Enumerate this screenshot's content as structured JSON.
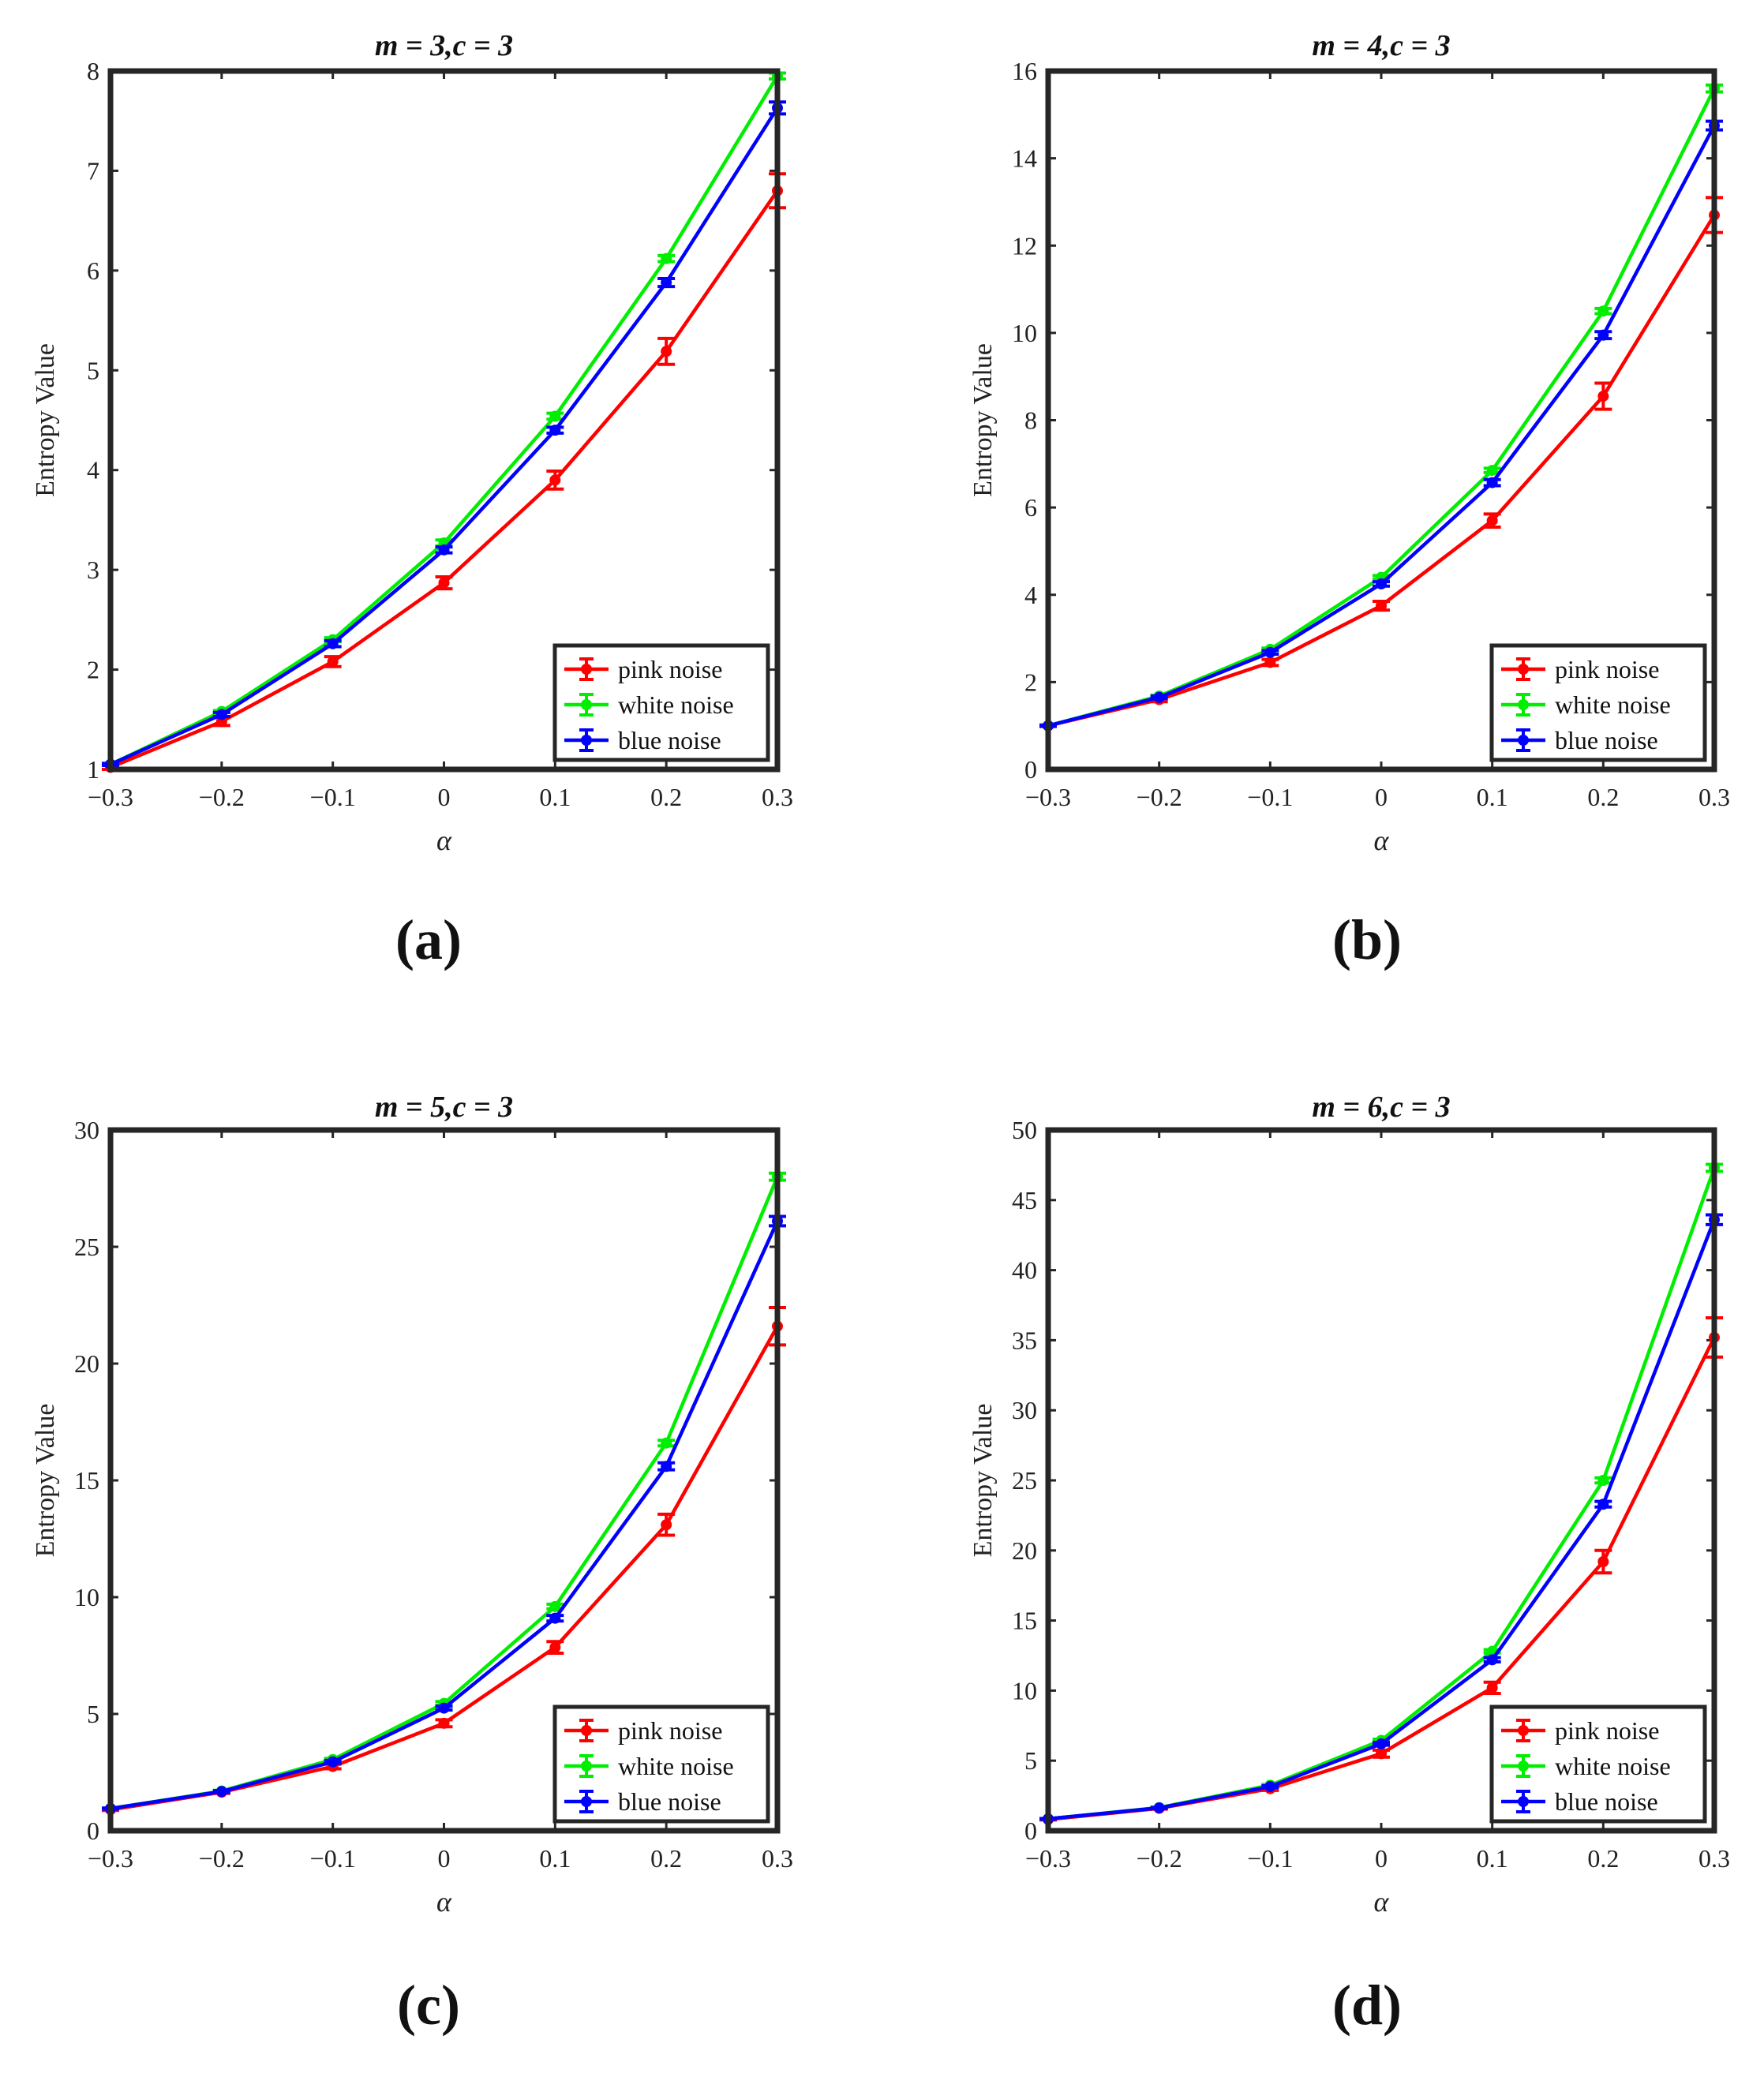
{
  "colors": {
    "pink_noise": "#ff0000",
    "white_noise": "#00ee00",
    "blue_noise": "#0000ff",
    "axes": "#262626"
  },
  "chart_data": [
    {
      "type": "line",
      "panel": "(a)",
      "title": "m = 3,c = 3",
      "xlabel": "α",
      "ylabel": "Entropy Value",
      "x": [
        -0.3,
        -0.2,
        -0.1,
        0,
        0.1,
        0.2,
        0.3
      ],
      "x_tick_labels": [
        "−0.3",
        "−0.2",
        "−0.1",
        "0",
        "0.1",
        "0.2",
        "0.3"
      ],
      "xlim": [
        -0.3,
        0.3
      ],
      "ylim": [
        1,
        8
      ],
      "y_ticks": [
        1,
        2,
        3,
        4,
        5,
        6,
        7,
        8
      ],
      "y_tick_labels": [
        "1",
        "2",
        "3",
        "4",
        "5",
        "6",
        "7",
        "8"
      ],
      "legend_position": "bottom-right",
      "series": [
        {
          "name": "pink noise",
          "color_key": "pink_noise",
          "values": [
            1.02,
            1.48,
            2.08,
            2.87,
            3.9,
            5.19,
            6.8
          ],
          "errors": [
            0.02,
            0.04,
            0.05,
            0.06,
            0.09,
            0.13,
            0.17
          ]
        },
        {
          "name": "white noise",
          "color_key": "white_noise",
          "values": [
            1.05,
            1.58,
            2.3,
            3.27,
            4.54,
            6.12,
            7.95
          ],
          "errors": [
            0.01,
            0.01,
            0.02,
            0.03,
            0.03,
            0.03,
            0.03
          ]
        },
        {
          "name": "blue noise",
          "color_key": "blue_noise",
          "values": [
            1.05,
            1.55,
            2.26,
            3.2,
            4.4,
            5.88,
            7.63
          ],
          "errors": [
            0.01,
            0.02,
            0.03,
            0.03,
            0.03,
            0.04,
            0.06
          ]
        }
      ]
    },
    {
      "type": "line",
      "panel": "(b)",
      "title": "m = 4,c = 3",
      "xlabel": "α",
      "ylabel": "Entropy Value",
      "x": [
        -0.3,
        -0.2,
        -0.1,
        0,
        0.1,
        0.2,
        0.3
      ],
      "x_tick_labels": [
        "−0.3",
        "−0.2",
        "−0.1",
        "0",
        "0.1",
        "0.2",
        "0.3"
      ],
      "xlim": [
        -0.3,
        0.3
      ],
      "ylim": [
        0,
        16
      ],
      "y_ticks": [
        0,
        2,
        4,
        6,
        8,
        10,
        12,
        14,
        16
      ],
      "y_tick_labels": [
        "0",
        "2",
        "4",
        "6",
        "8",
        "10",
        "12",
        "14",
        "16"
      ],
      "legend_position": "bottom-right",
      "series": [
        {
          "name": "pink noise",
          "color_key": "pink_noise",
          "values": [
            1.0,
            1.6,
            2.45,
            3.75,
            5.7,
            8.55,
            12.7
          ],
          "errors": [
            0.02,
            0.05,
            0.07,
            0.1,
            0.15,
            0.3,
            0.4
          ]
        },
        {
          "name": "white noise",
          "color_key": "white_noise",
          "values": [
            1.0,
            1.68,
            2.75,
            4.4,
            6.85,
            10.5,
            15.6
          ],
          "errors": [
            0.01,
            0.02,
            0.03,
            0.04,
            0.05,
            0.06,
            0.08
          ]
        },
        {
          "name": "blue noise",
          "color_key": "blue_noise",
          "values": [
            1.0,
            1.65,
            2.68,
            4.25,
            6.57,
            9.95,
            14.75
          ],
          "errors": [
            0.01,
            0.03,
            0.04,
            0.05,
            0.07,
            0.08,
            0.1
          ]
        }
      ]
    },
    {
      "type": "line",
      "panel": "(c)",
      "title": "m = 5,c = 3",
      "xlabel": "α",
      "ylabel": "Entropy Value",
      "x": [
        -0.3,
        -0.2,
        -0.1,
        0,
        0.1,
        0.2,
        0.3
      ],
      "x_tick_labels": [
        "−0.3",
        "−0.2",
        "−0.1",
        "0",
        "0.1",
        "0.2",
        "0.3"
      ],
      "xlim": [
        -0.3,
        0.3
      ],
      "ylim": [
        0,
        30
      ],
      "y_ticks": [
        0,
        5,
        10,
        15,
        20,
        25,
        30
      ],
      "y_tick_labels": [
        "0",
        "5",
        "10",
        "15",
        "20",
        "25",
        "30"
      ],
      "legend_position": "bottom-right",
      "series": [
        {
          "name": "pink noise",
          "color_key": "pink_noise",
          "values": [
            0.9,
            1.65,
            2.75,
            4.6,
            7.85,
            13.1,
            21.6
          ],
          "errors": [
            0.03,
            0.05,
            0.1,
            0.15,
            0.25,
            0.45,
            0.8
          ]
        },
        {
          "name": "white noise",
          "color_key": "white_noise",
          "values": [
            0.95,
            1.7,
            3.05,
            5.45,
            9.6,
            16.6,
            28.0
          ],
          "errors": [
            0.02,
            0.03,
            0.05,
            0.08,
            0.1,
            0.12,
            0.15
          ]
        },
        {
          "name": "blue noise",
          "color_key": "blue_noise",
          "values": [
            0.95,
            1.68,
            2.95,
            5.25,
            9.1,
            15.6,
            26.1
          ],
          "errors": [
            0.02,
            0.04,
            0.06,
            0.08,
            0.12,
            0.15,
            0.2
          ]
        }
      ]
    },
    {
      "type": "line",
      "panel": "(d)",
      "title": "m = 6,c = 3",
      "xlabel": "α",
      "ylabel": "Entropy Value",
      "x": [
        -0.3,
        -0.2,
        -0.1,
        0,
        0.1,
        0.2,
        0.3
      ],
      "x_tick_labels": [
        "−0.3",
        "−0.2",
        "−0.1",
        "0",
        "0.1",
        "0.2",
        "0.3"
      ],
      "xlim": [
        -0.3,
        0.3
      ],
      "ylim": [
        0,
        50
      ],
      "y_ticks": [
        0,
        5,
        10,
        15,
        20,
        25,
        30,
        35,
        40,
        45,
        50
      ],
      "y_tick_labels": [
        "0",
        "5",
        "10",
        "15",
        "20",
        "25",
        "30",
        "35",
        "40",
        "45",
        "50"
      ],
      "legend_position": "bottom-right",
      "series": [
        {
          "name": "pink noise",
          "color_key": "pink_noise",
          "values": [
            0.8,
            1.6,
            3.0,
            5.5,
            10.2,
            19.2,
            35.2
          ],
          "errors": [
            0.03,
            0.06,
            0.12,
            0.25,
            0.4,
            0.8,
            1.4
          ]
        },
        {
          "name": "white noise",
          "color_key": "white_noise",
          "values": [
            0.85,
            1.65,
            3.25,
            6.45,
            12.8,
            25.0,
            47.3
          ],
          "errors": [
            0.02,
            0.03,
            0.05,
            0.08,
            0.12,
            0.18,
            0.25
          ]
        },
        {
          "name": "blue noise",
          "color_key": "blue_noise",
          "values": [
            0.85,
            1.63,
            3.15,
            6.2,
            12.2,
            23.3,
            43.6
          ],
          "errors": [
            0.02,
            0.04,
            0.06,
            0.1,
            0.15,
            0.2,
            0.35
          ]
        }
      ]
    }
  ]
}
